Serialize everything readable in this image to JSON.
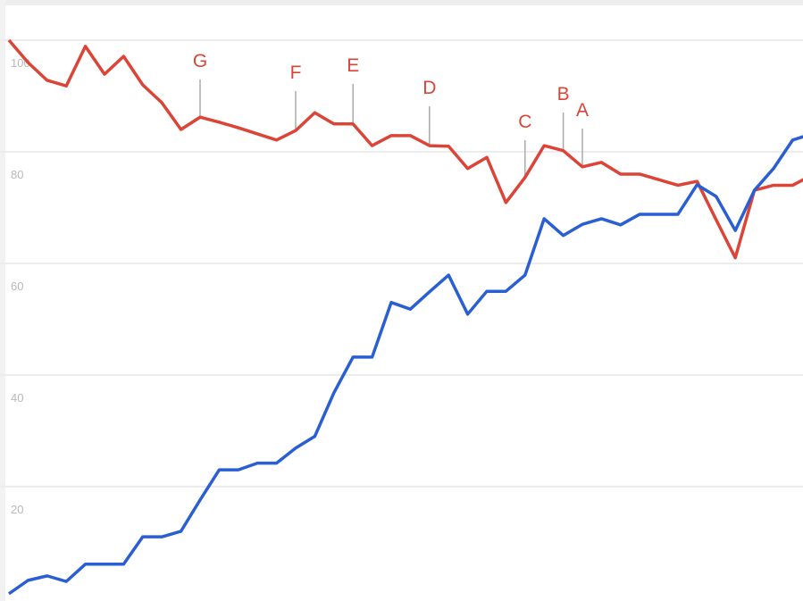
{
  "chart_data": {
    "type": "line",
    "categories": [
      null,
      null,
      null,
      null,
      null,
      null,
      null,
      null,
      null,
      null,
      null,
      null,
      null,
      null,
      null,
      null,
      null,
      null,
      null,
      null,
      null,
      null,
      null,
      null,
      null,
      null,
      null,
      null,
      null,
      null,
      null,
      null,
      null,
      null,
      null,
      null,
      null,
      null,
      null,
      null,
      null,
      null,
      null
    ],
    "series": [
      {
        "color": "#db4437",
        "values": [
          100,
          96,
          92.8,
          91.8,
          98.9,
          93.9,
          97.1,
          92,
          88.8,
          84,
          86.2,
          85.3,
          84.3,
          83.2,
          82.1,
          83.8,
          87,
          85,
          85,
          81.1,
          82.9,
          82.9,
          81.1,
          81,
          77,
          79,
          70.9,
          75.4,
          81.1,
          80.2,
          77.3,
          78.1,
          76,
          76,
          75,
          74,
          74.7,
          67.8,
          61,
          73.1,
          74,
          74,
          75.8
        ]
      },
      {
        "color": "#2a5fd3",
        "values": [
          0.8,
          3.2,
          4,
          3,
          6.1,
          6.1,
          6.1,
          11,
          11,
          12,
          17.6,
          23,
          23,
          24.2,
          24.2,
          26.9,
          29,
          36.8,
          43.2,
          43.2,
          53,
          51.8,
          54.9,
          57.9,
          50.9,
          55,
          55,
          57.9,
          68,
          65,
          67,
          68,
          66.9,
          68.8,
          68.8,
          68.8,
          74.1,
          72,
          65.9,
          73.1,
          77,
          82.1,
          83.2
        ]
      }
    ],
    "annotations": [
      {
        "label": "G",
        "point": 10
      },
      {
        "label": "F",
        "point": 15
      },
      {
        "label": "E",
        "point": 18
      },
      {
        "label": "D",
        "point": 22
      },
      {
        "label": "C",
        "point": 27
      },
      {
        "label": "B",
        "point": 29
      },
      {
        "label": "A",
        "point": 30
      }
    ],
    "ylim": [
      -0.5,
      107.2
    ],
    "yticks": [
      20,
      40,
      60,
      80,
      100
    ],
    "grid": true
  }
}
